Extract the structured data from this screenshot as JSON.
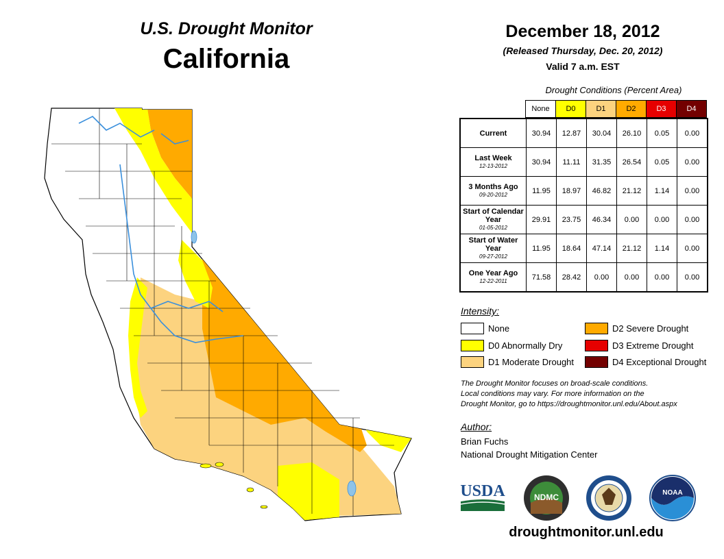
{
  "header": {
    "subtitle": "U.S. Drought Monitor",
    "region": "California",
    "date": "December 18, 2012",
    "released": "(Released Thursday, Dec. 20, 2012)",
    "valid": "Valid 7 a.m. EST"
  },
  "conditions": {
    "title": "Drought Conditions (Percent Area)",
    "columns": [
      "None",
      "D0",
      "D1",
      "D2",
      "D3",
      "D4"
    ],
    "column_colors": [
      "#ffffff",
      "#ffff00",
      "#fcd37f",
      "#ffaa00",
      "#e60000",
      "#730000"
    ],
    "rows": [
      {
        "label": "Current",
        "date": "",
        "values": [
          "30.94",
          "12.87",
          "30.04",
          "26.10",
          "0.05",
          "0.00"
        ]
      },
      {
        "label": "Last Week",
        "date": "12-13-2012",
        "values": [
          "30.94",
          "11.11",
          "31.35",
          "26.54",
          "0.05",
          "0.00"
        ]
      },
      {
        "label": "3 Months Ago",
        "date": "09-20-2012",
        "values": [
          "11.95",
          "18.97",
          "46.82",
          "21.12",
          "1.14",
          "0.00"
        ]
      },
      {
        "label": "Start of Calendar Year",
        "date": "01-05-2012",
        "values": [
          "29.91",
          "23.75",
          "46.34",
          "0.00",
          "0.00",
          "0.00"
        ]
      },
      {
        "label": "Start of Water Year",
        "date": "09-27-2012",
        "values": [
          "11.95",
          "18.64",
          "47.14",
          "21.12",
          "1.14",
          "0.00"
        ]
      },
      {
        "label": "One Year Ago",
        "date": "12-22-2011",
        "values": [
          "71.58",
          "28.42",
          "0.00",
          "0.00",
          "0.00",
          "0.00"
        ]
      }
    ]
  },
  "legend": {
    "title": "Intensity:",
    "items": [
      {
        "label": "None",
        "color": "#ffffff"
      },
      {
        "label": "D0 Abnormally Dry",
        "color": "#ffff00"
      },
      {
        "label": "D1 Moderate Drought",
        "color": "#fcd37f"
      },
      {
        "label": "D2 Severe Drought",
        "color": "#ffaa00"
      },
      {
        "label": "D3 Extreme Drought",
        "color": "#e60000"
      },
      {
        "label": "D4 Exceptional Drought",
        "color": "#730000"
      }
    ]
  },
  "note": {
    "line1": "The Drought Monitor focuses on broad-scale conditions.",
    "line2": "Local conditions may vary. For more information on the",
    "line3": "Drought Monitor, go to https://droughtmonitor.unl.edu/About.aspx"
  },
  "author": {
    "title": "Author:",
    "name": "Brian Fuchs",
    "org": "National Drought Mitigation Center"
  },
  "logos": {
    "usda": "USDA",
    "ndmc": "NDMC",
    "noaa": "NOAA"
  },
  "footer": {
    "url": "droughtmonitor.unl.edu"
  },
  "map_colors": {
    "none": "#ffffff",
    "d0": "#ffff00",
    "d1": "#fcd37f",
    "d2": "#ffaa00",
    "water": "#8ec3e8",
    "river": "#3a8fdc"
  }
}
